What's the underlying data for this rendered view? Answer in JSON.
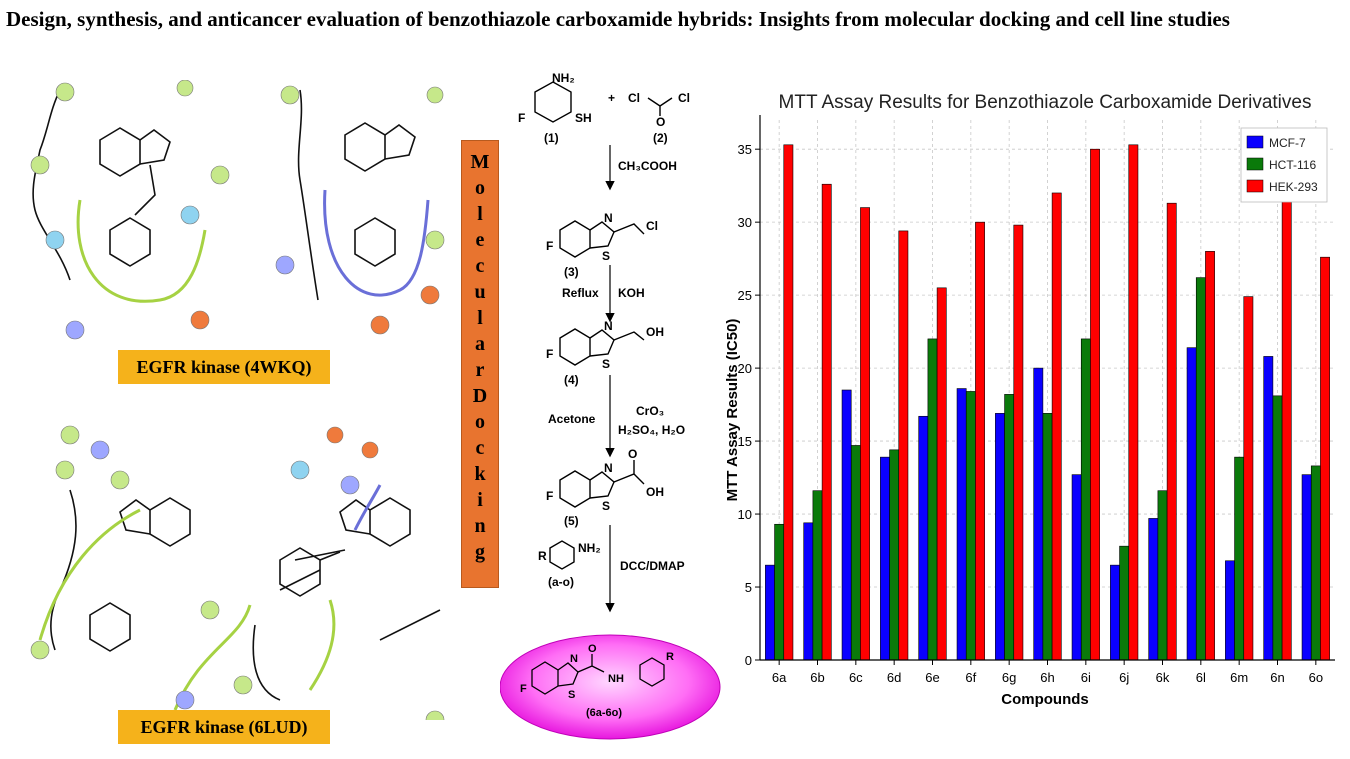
{
  "title": "Design, synthesis, and anticancer evaluation of benzothiazole carboxamide hybrids: Insights from molecular docking and cell line studies",
  "docking": {
    "label_top": "EGFR kinase (4WKQ)",
    "label_bottom": "EGFR kinase (6LUD)",
    "vertical_label_letters": [
      "M",
      "o",
      "l",
      "e",
      "c",
      "u",
      "l",
      "a",
      "r",
      "D",
      "o",
      "c",
      "k",
      "i",
      "n",
      "g"
    ]
  },
  "scheme": {
    "compound1_label": "(1)",
    "compound2_label": "(2)",
    "plus": "+",
    "reagent1": "CH₃COOH",
    "compound3_label": "(3)",
    "reagent2a": "Reflux",
    "reagent2b": "KOH",
    "compound4_label": "(4)",
    "reagent3a": "Acetone",
    "reagent3b": "CrO₃",
    "reagent3c": "H₂SO₄, H₂O",
    "compound5_label": "(5)",
    "amine_label": "(a-o)",
    "reagent4": "DCC/DMAP",
    "product_label": "(6a-6o)",
    "atoms": {
      "nh2": "NH₂",
      "sh": "SH",
      "f": "F",
      "cl": "Cl",
      "o": "O",
      "n": "N",
      "s": "S",
      "oh": "OH",
      "nh": "NH",
      "r": "R"
    }
  },
  "chart_data": {
    "type": "bar",
    "title": "MTT Assay Results for Benzothiazole Carboxamide Derivatives",
    "xlabel": "Compounds",
    "ylabel": "MTT Assay Results (IC50)",
    "ylim": [
      0,
      37
    ],
    "yticks": [
      0,
      5,
      10,
      15,
      20,
      25,
      30,
      35
    ],
    "grid": true,
    "legend_position": "top-right",
    "categories": [
      "6a",
      "6b",
      "6c",
      "6d",
      "6e",
      "6f",
      "6g",
      "6h",
      "6i",
      "6j",
      "6k",
      "6l",
      "6m",
      "6n",
      "6o"
    ],
    "series": [
      {
        "name": "MCF-7",
        "color": "#0a00ff",
        "values": [
          6.5,
          9.4,
          18.5,
          13.9,
          16.7,
          18.6,
          16.9,
          20.0,
          12.7,
          6.5,
          9.7,
          21.4,
          6.8,
          20.8,
          12.7
        ]
      },
      {
        "name": "HCT-116",
        "color": "#0a7a0a",
        "values": [
          9.3,
          11.6,
          14.7,
          14.4,
          22.0,
          18.4,
          18.2,
          16.9,
          22.0,
          7.8,
          11.6,
          26.2,
          13.9,
          18.1,
          13.3
        ]
      },
      {
        "name": "HEK-293",
        "color": "#ff0000",
        "values": [
          35.3,
          32.6,
          31.0,
          29.4,
          25.5,
          30.0,
          29.8,
          32.0,
          35.0,
          35.3,
          31.3,
          28.0,
          24.9,
          33.0,
          27.6
        ]
      }
    ]
  }
}
